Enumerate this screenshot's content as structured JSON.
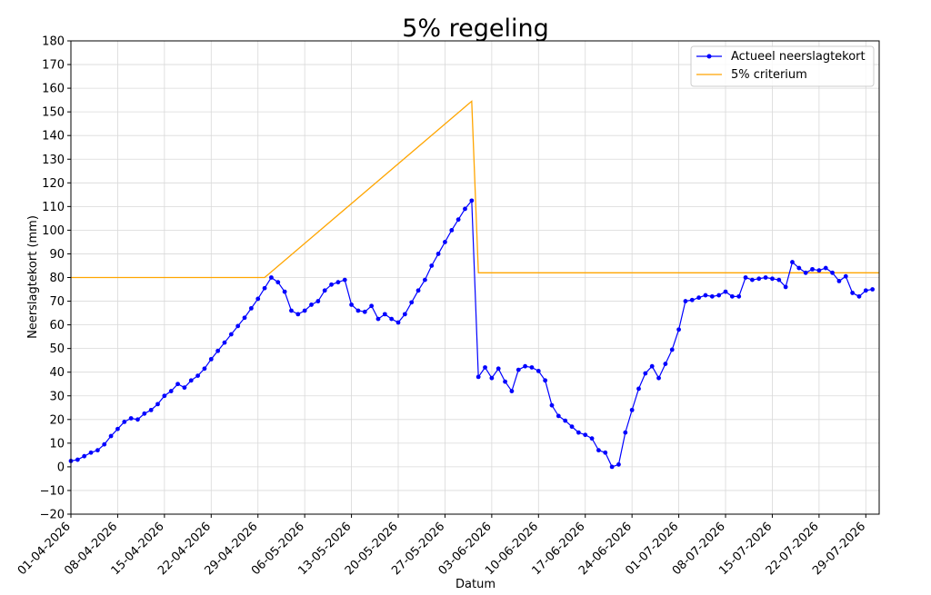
{
  "chart_data": {
    "type": "line",
    "title": "5% regeling",
    "xlabel": "Datum",
    "ylabel": "Neerslagtekort (mm)",
    "ylim": [
      -20,
      180
    ],
    "yticks": [
      -20,
      -10,
      0,
      10,
      20,
      30,
      40,
      50,
      60,
      70,
      80,
      90,
      100,
      110,
      120,
      130,
      140,
      150,
      160,
      170,
      180
    ],
    "xlim": [
      "2026-04-01",
      "2026-07-31"
    ],
    "xticks": [
      "01-04-2026",
      "08-04-2026",
      "15-04-2026",
      "22-04-2026",
      "29-04-2026",
      "06-05-2026",
      "13-05-2026",
      "20-05-2026",
      "27-05-2026",
      "03-06-2026",
      "10-06-2026",
      "17-06-2026",
      "24-06-2026",
      "01-07-2026",
      "08-07-2026",
      "15-07-2026",
      "22-07-2026",
      "29-07-2026"
    ],
    "grid": true,
    "legend_position": "top-right",
    "series": [
      {
        "name": "Actueel neerslagtekort",
        "color": "#0000ff",
        "marker": "circle",
        "start_date": "2026-04-01",
        "values": [
          2.5,
          3,
          4.5,
          6,
          7,
          9.5,
          13,
          16,
          19,
          20.5,
          20,
          22.5,
          24,
          26.5,
          30,
          32,
          35,
          33.5,
          36.5,
          38.5,
          41.5,
          45.5,
          49,
          52.5,
          56,
          59.5,
          63,
          67,
          71,
          75.5,
          80,
          78,
          74,
          66,
          64.5,
          66,
          68.5,
          70,
          74.5,
          77,
          78,
          79,
          68.5,
          66,
          65.5,
          68,
          62.5,
          64.5,
          62.5,
          61,
          64.5,
          69.5,
          74.5,
          79,
          85,
          90,
          95,
          100,
          104.5,
          109,
          112.5,
          38,
          42,
          37.5,
          41.5,
          36,
          32,
          41,
          42.5,
          42,
          40.5,
          36.5,
          26,
          21.5,
          19.5,
          17,
          14.5,
          13.5,
          12,
          7,
          6,
          0,
          1,
          14.5,
          24,
          33,
          39.5,
          42.5,
          37.5,
          43.5,
          49.5,
          58,
          70,
          70.5,
          71.5,
          72.5,
          72,
          72.5,
          74,
          72,
          72,
          80,
          79,
          79.5,
          80,
          79.5,
          79,
          76,
          86.5,
          84,
          82,
          83.5,
          83,
          84,
          82,
          78.5,
          80.5,
          73.5,
          72,
          74.5,
          75
        ]
      },
      {
        "name": "5% criterium",
        "color": "#ffa500",
        "marker": "none",
        "points": [
          [
            "2026-04-01",
            80
          ],
          [
            "2026-04-30",
            80
          ],
          [
            "2026-05-31",
            154.5
          ],
          [
            "2026-06-01",
            82
          ],
          [
            "2026-07-31",
            82
          ]
        ]
      }
    ]
  }
}
